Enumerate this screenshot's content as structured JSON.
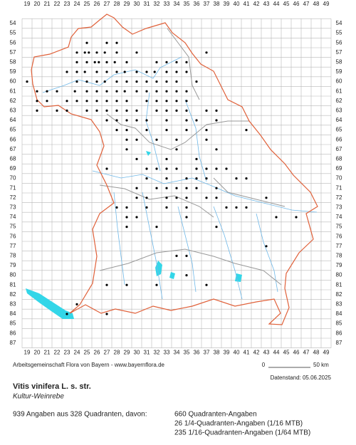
{
  "map": {
    "columns": [
      19,
      20,
      21,
      22,
      23,
      24,
      25,
      26,
      27,
      28,
      29,
      30,
      31,
      32,
      33,
      34,
      35,
      36,
      37,
      38,
      39,
      40,
      41,
      42,
      43,
      44,
      45,
      46,
      47,
      48,
      49
    ],
    "rows": [
      54,
      55,
      56,
      57,
      58,
      59,
      60,
      61,
      62,
      63,
      64,
      65,
      66,
      67,
      68,
      69,
      70,
      71,
      72,
      73,
      74,
      75,
      76,
      77,
      78,
      79,
      80,
      81,
      82,
      83,
      84,
      85,
      86,
      87
    ],
    "occurrences": [
      {
        "row": 56,
        "cols": [
          25.5,
          27.5,
          28.5
        ]
      },
      {
        "row": 57,
        "cols": [
          24.5,
          25.3,
          25.7,
          26.5,
          27.3,
          28.5,
          30.5,
          37.5
        ]
      },
      {
        "row": 58,
        "cols": [
          24.5,
          25.5,
          26.3,
          26.7,
          27.5,
          28.3,
          29.5,
          32.5,
          33.5,
          34.5,
          35.5
        ]
      },
      {
        "row": 59,
        "cols": [
          23.5,
          24.5,
          25.3,
          26.5,
          27.5,
          28.5,
          29.3,
          30.5,
          31.5,
          32.3,
          33.5,
          34.5,
          35.5
        ]
      },
      {
        "row": 60,
        "cols": [
          19.5,
          24.5,
          25.5,
          26.5,
          27.3,
          28.5,
          29.5,
          30.5,
          31.5,
          32.5,
          33.5,
          34.5,
          36.5
        ]
      },
      {
        "row": 61,
        "cols": [
          20.5,
          21.5,
          22.5,
          24.3,
          25.5,
          26.5,
          27.5,
          28.5,
          29.3,
          30.5,
          31.5,
          32.5,
          33.5,
          34.5,
          35.5
        ]
      },
      {
        "row": 62,
        "cols": [
          20.5,
          21.5,
          23.5,
          24.5,
          25.5,
          26.5,
          27.5,
          28.5,
          29.5,
          31.5,
          32.5,
          33.5,
          34.5,
          35.5
        ]
      },
      {
        "row": 63,
        "cols": [
          20.5,
          22.5,
          23.5,
          25.5,
          26.5,
          27.5,
          28.5,
          29.5,
          30.5,
          32.5,
          33.5,
          34.5,
          35.5,
          37.5,
          38.5
        ]
      },
      {
        "row": 64,
        "cols": [
          27.5,
          28.5,
          29.5,
          30.5,
          31.5,
          33.5,
          35.5,
          36.5,
          38.5
        ]
      },
      {
        "row": 65,
        "cols": [
          28.5,
          29.5,
          31.5,
          33.5,
          35.5,
          37.5,
          41.5
        ]
      },
      {
        "row": 66,
        "cols": [
          29.5,
          30.5,
          32.5,
          34.5,
          37.5
        ]
      },
      {
        "row": 67,
        "cols": [
          29.5,
          34.5,
          38.5
        ]
      },
      {
        "row": 68,
        "cols": [
          30.5,
          33.5,
          36.5
        ]
      },
      {
        "row": 69,
        "cols": [
          27.5,
          31.5,
          32.5,
          33.5,
          34.5,
          36.5,
          37.5,
          38.5,
          39.5
        ]
      },
      {
        "row": 70,
        "cols": [
          31.5,
          33.5,
          35.5,
          36.5,
          37.5,
          40.5,
          41.5
        ]
      },
      {
        "row": 71,
        "cols": [
          30.5,
          32.5,
          33.5,
          34.5,
          35.5,
          36.5,
          38.5
        ]
      },
      {
        "row": 72,
        "cols": [
          30.5,
          31.5,
          33.5,
          34.5,
          35.5,
          37.5,
          38.5,
          43.5
        ]
      },
      {
        "row": 73,
        "cols": [
          28.5,
          29.5,
          31.5,
          33.5,
          35.5,
          39.5,
          40.5,
          41.5
        ]
      },
      {
        "row": 74,
        "cols": [
          29.5,
          30.5,
          35.5,
          44.5,
          46.5
        ]
      },
      {
        "row": 75,
        "cols": [
          29.5,
          32.5,
          38.5
        ]
      },
      {
        "row": 77,
        "cols": [
          43.5
        ]
      },
      {
        "row": 78,
        "cols": [
          34.5,
          35.5
        ]
      },
      {
        "row": 80,
        "cols": [
          35.5
        ]
      },
      {
        "row": 81,
        "cols": [
          27.5,
          29.5,
          32.5,
          37.5
        ]
      },
      {
        "row": 83,
        "cols": [
          24.5
        ]
      },
      {
        "row": 84,
        "cols": [
          23.5,
          27.5
        ]
      }
    ]
  },
  "footer": {
    "credit": "Arbeitsgemeinschaft Flora von Bayern - www.bayernflora.de",
    "scale_start": "0",
    "scale_end": "50 km",
    "date": "Datenstand: 05.06.2025"
  },
  "species": {
    "name": "Vitis vinifera L. s. str.",
    "common_name": "Kultur-Weinrebe"
  },
  "summary": {
    "total": "939 Angaben aus 328 Quadranten, davon:",
    "lines": [
      "660 Quadranten-Angaben",
      "26 1/4-Quadranten-Angaben (1/16 MTB)",
      "235 1/16-Quadranten-Angaben (1/64 MTB)"
    ]
  }
}
